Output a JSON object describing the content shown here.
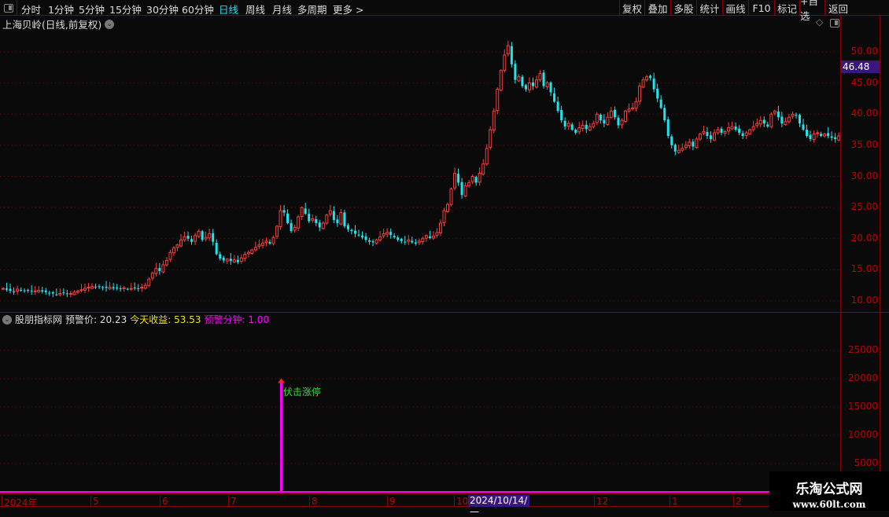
{
  "toolbar": {
    "periods": [
      "分时",
      "1分钟",
      "5分钟",
      "15分钟",
      "30分钟",
      "60分钟",
      "日线",
      "周线",
      "月线",
      "多周期",
      "更多 >"
    ],
    "active_period": "日线",
    "right_buttons": [
      "复权",
      "叠加",
      "多股",
      "统计",
      "画线",
      "F10",
      "标记",
      "+自选",
      "返回"
    ]
  },
  "chart": {
    "title": "上海贝岭(日线,前复权)",
    "current_price": "46.48",
    "price_ticks": [
      "50.00",
      "45.00",
      "40.00",
      "35.00",
      "30.00",
      "25.00",
      "20.00",
      "15.00",
      "10.00"
    ],
    "colors": {
      "up": "#ff3b3b",
      "down": "#1ee6f0",
      "grid": "#7a0000"
    },
    "closes": [
      12.0,
      11.8,
      11.6,
      11.5,
      11.9,
      11.7,
      11.6,
      11.7,
      11.5,
      11.6,
      11.7,
      11.5,
      11.4,
      11.3,
      11.2,
      11.0,
      11.2,
      11.3,
      11.1,
      11.2,
      11.4,
      11.6,
      11.8,
      12.0,
      12.2,
      12.3,
      12.2,
      12.3,
      12.2,
      12.1,
      12.2,
      12.0,
      12.1,
      12.0,
      12.1,
      11.9,
      12.0,
      12.1,
      12.0,
      12.2,
      12.5,
      13.5,
      14.5,
      15.2,
      14.8,
      15.8,
      16.5,
      17.8,
      18.5,
      19.0,
      19.8,
      20.3,
      20.0,
      19.5,
      20.5,
      21.2,
      19.8,
      20.2,
      20.8,
      19.5,
      17.5,
      16.8,
      16.5,
      16.7,
      16.4,
      16.6,
      16.2,
      16.9,
      17.5,
      17.8,
      18.2,
      18.6,
      19.0,
      19.3,
      19.6,
      19.2,
      20.2,
      22.0,
      24.5,
      24.2,
      22.5,
      21.2,
      21.8,
      23.5,
      25.0,
      24.0,
      22.8,
      23.2,
      22.5,
      21.8,
      22.5,
      23.8,
      24.5,
      23.0,
      22.5,
      24.2,
      22.0,
      21.5,
      21.2,
      20.8,
      20.5,
      20.2,
      19.8,
      19.5,
      19.4,
      19.8,
      20.3,
      20.8,
      21.0,
      20.6,
      20.2,
      19.8,
      19.6,
      19.5,
      19.8,
      19.4,
      19.2,
      19.6,
      20.0,
      20.5,
      20.1,
      20.4,
      21.0,
      22.5,
      24.5,
      25.5,
      28.0,
      30.5,
      29.0,
      27.0,
      28.5,
      29.0,
      30.0,
      29.0,
      30.5,
      32.0,
      34.5,
      37.5,
      40.5,
      44.0,
      47.0,
      49.5,
      51.0,
      48.0,
      45.5,
      46.0,
      44.5,
      44.0,
      45.0,
      44.5,
      45.5,
      46.5,
      44.5,
      45.0,
      43.5,
      42.0,
      40.5,
      39.0,
      38.0,
      38.5,
      37.5,
      37.0,
      37.8,
      38.2,
      37.6,
      38.0,
      38.5,
      40.0,
      39.0,
      38.5,
      39.5,
      40.5,
      39.5,
      38.2,
      39.0,
      40.5,
      40.8,
      41.0,
      42.0,
      44.5,
      45.5,
      46.0,
      45.8,
      44.0,
      42.5,
      41.0,
      39.0,
      36.5,
      35.0,
      34.0,
      34.2,
      34.5,
      35.0,
      35.5,
      34.8,
      36.0,
      36.8,
      37.2,
      36.5,
      36.0,
      37.0,
      37.5,
      37.0,
      37.2,
      37.8,
      38.0,
      37.5,
      37.0,
      36.5,
      37.0,
      37.5,
      38.0,
      38.5,
      39.0,
      38.5,
      38.0,
      40.0,
      40.5,
      39.5,
      38.5,
      38.8,
      39.5,
      40.0,
      39.8,
      38.5,
      37.5,
      36.5,
      36.0,
      36.8,
      37.0,
      36.5,
      36.8,
      36.5,
      36.2,
      36.0,
      36.5
    ]
  },
  "indicator": {
    "name": "股朋指标网",
    "warn_price_label": "预警价:",
    "warn_price": "20.23",
    "profit_label": "今天收益:",
    "profit": "53.53",
    "warn_minute_label": "预警分钟:",
    "warn_minute": "1.00",
    "ticks": [
      "25000",
      "20000",
      "15000",
      "10000",
      "5000"
    ],
    "signal_label": "伏击涨停",
    "signal_value": 19800,
    "signal_color": "#ff00ff"
  },
  "date_axis": {
    "labels": [
      "2024年",
      "5",
      "6",
      "7",
      "8",
      "9",
      "10",
      "12",
      "1",
      "2"
    ],
    "highlight": "2024/10/14/—"
  },
  "watermark": {
    "name": "乐淘公式网",
    "url": "www.60lt.com"
  }
}
